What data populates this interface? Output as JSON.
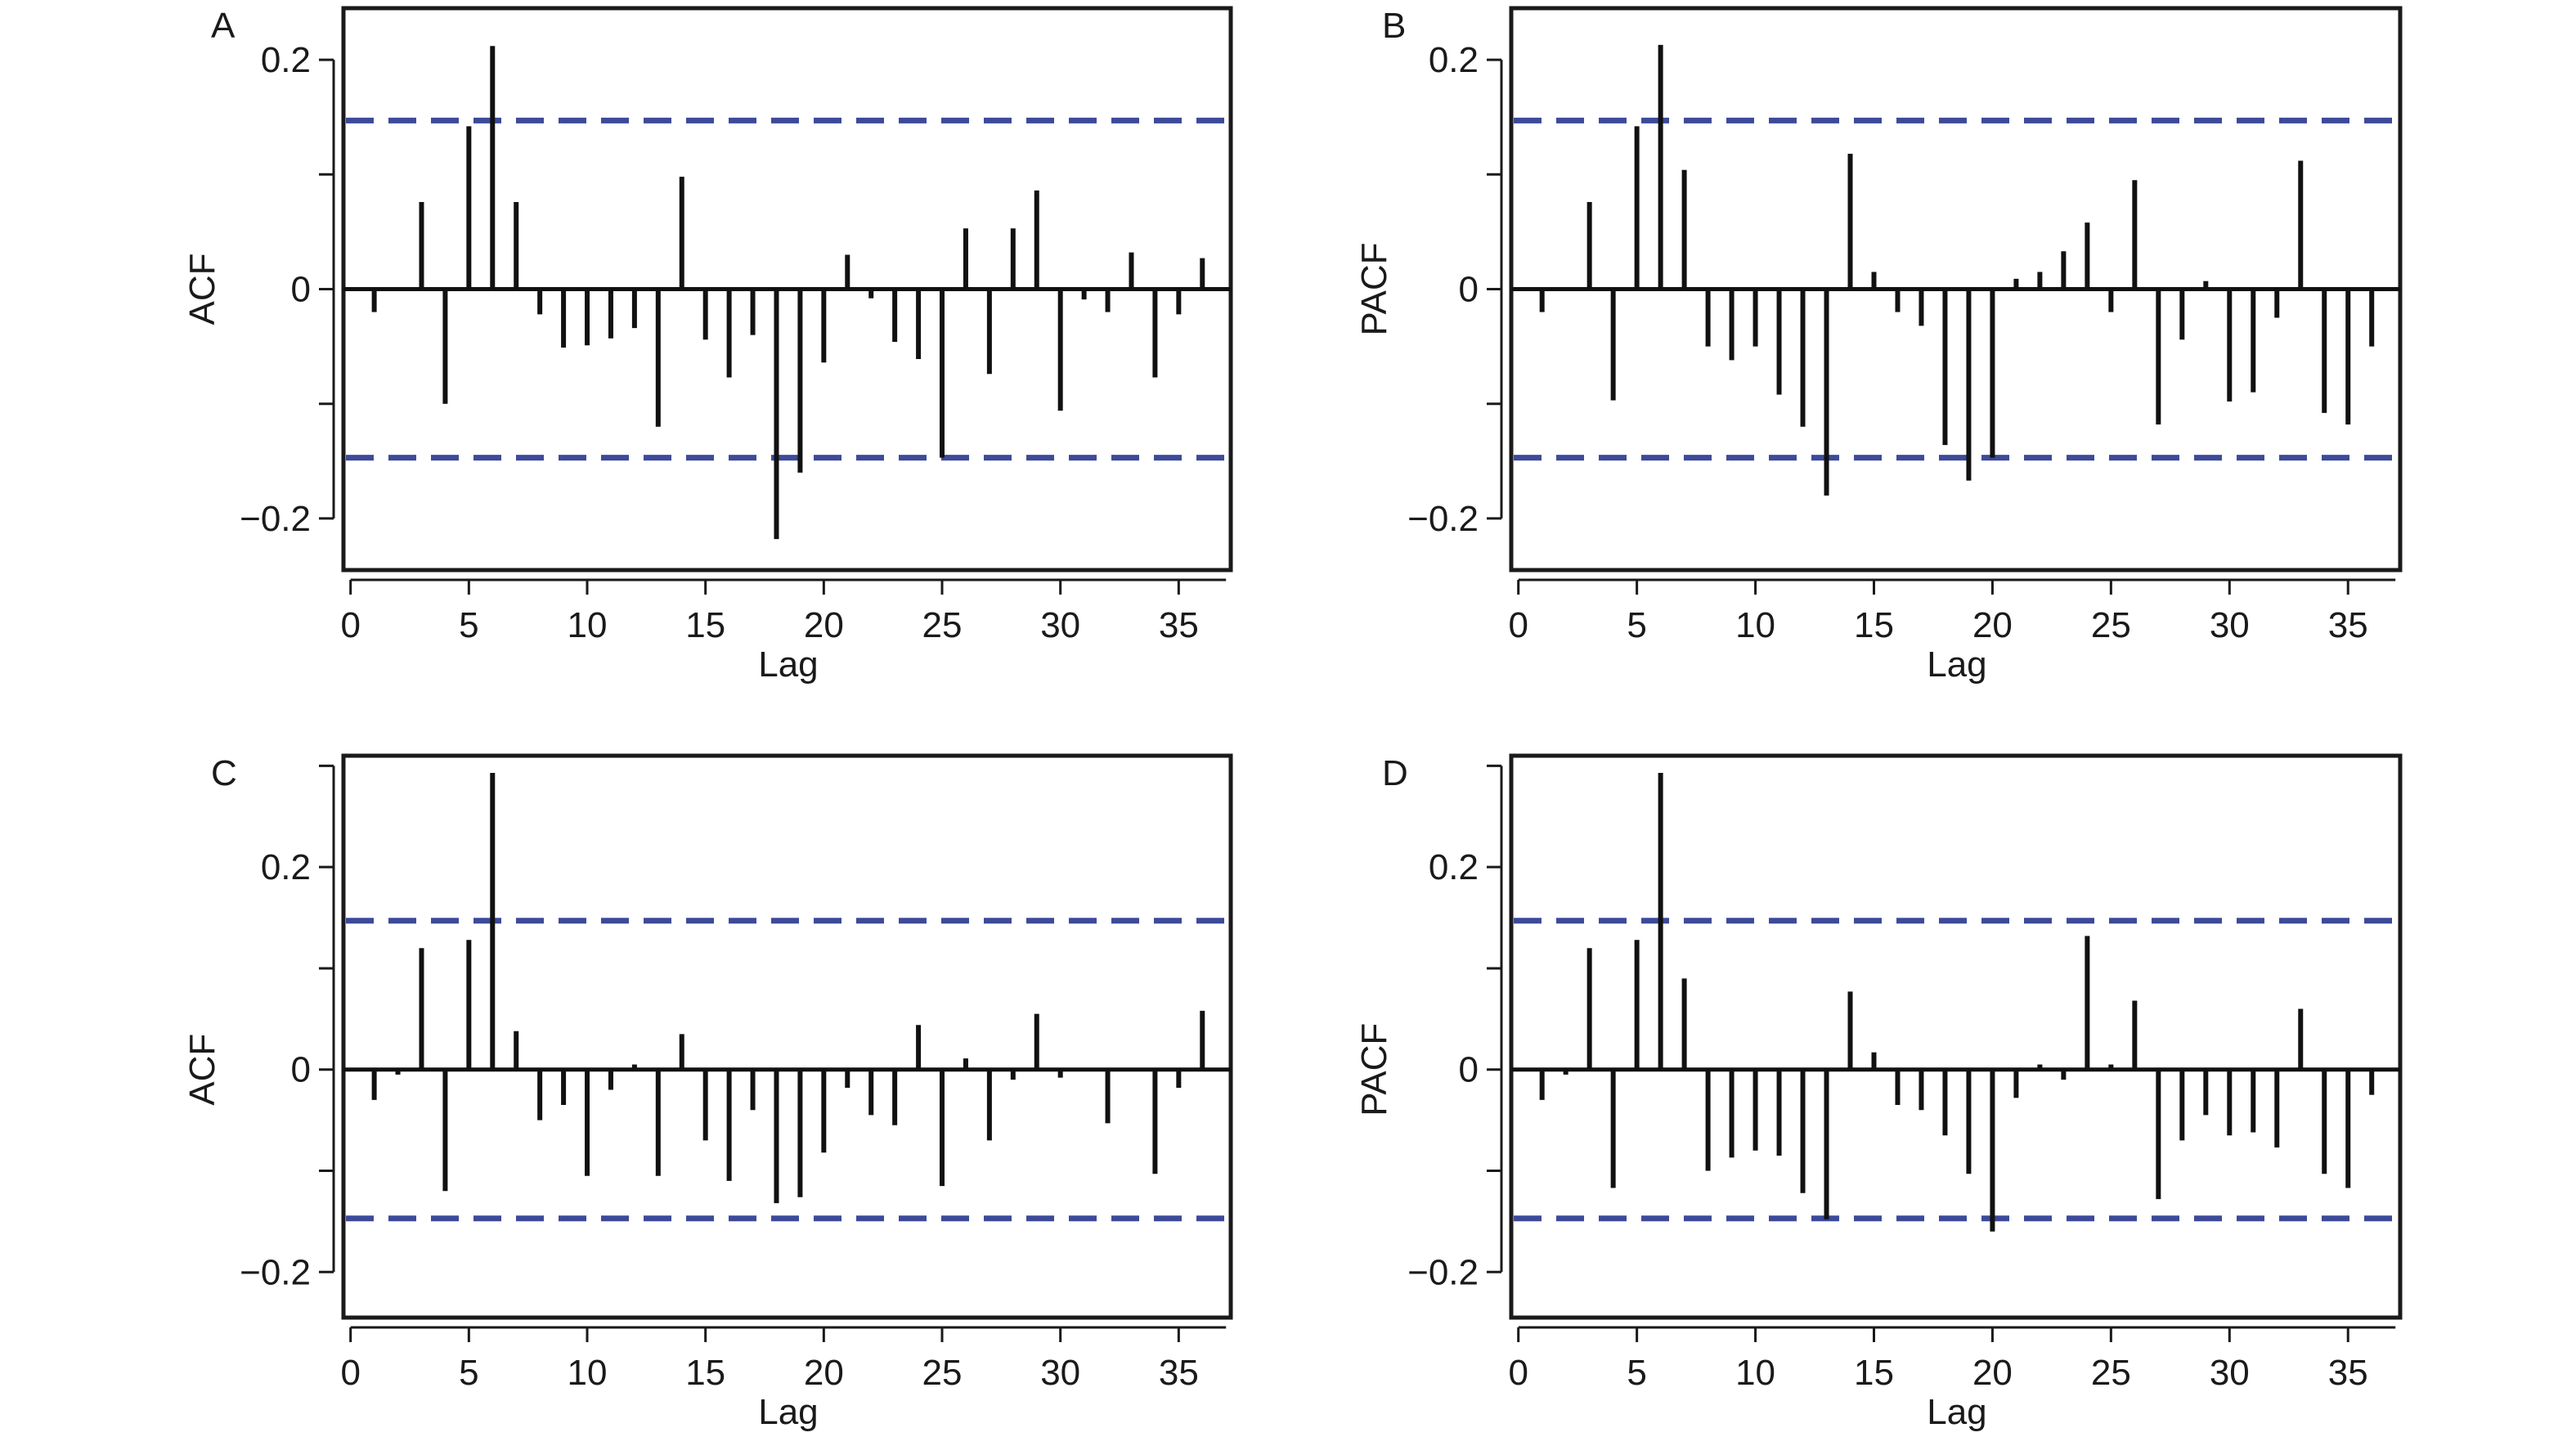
{
  "chart_data": [
    {
      "type": "bar",
      "panel_label": "A",
      "xlabel": "Lag",
      "ylabel": "ACF",
      "xlim": [
        -0.3,
        37.2
      ],
      "ylim": [
        -0.245,
        0.245
      ],
      "xticks": [
        0,
        5,
        10,
        15,
        20,
        25,
        30,
        35
      ],
      "yticks": [
        -0.2,
        -0.1,
        0,
        0.1,
        0.2
      ],
      "ytick_labels": [
        "−0.2",
        "",
        "0",
        "",
        "0.2"
      ],
      "confidence_bound": 0.147,
      "lags": [
        1,
        2,
        3,
        4,
        5,
        6,
        7,
        8,
        9,
        10,
        11,
        12,
        13,
        14,
        15,
        16,
        17,
        18,
        19,
        20,
        21,
        22,
        23,
        24,
        25,
        26,
        27,
        28,
        29,
        30,
        31,
        32,
        33,
        34,
        35,
        36
      ],
      "values": [
        -0.02,
        0,
        0.076,
        -0.1,
        0.142,
        0.212,
        0.076,
        -0.022,
        -0.051,
        -0.049,
        -0.043,
        -0.034,
        -0.12,
        0.098,
        -0.044,
        -0.077,
        -0.04,
        -0.218,
        -0.16,
        -0.064,
        0.03,
        -0.008,
        -0.046,
        -0.061,
        -0.147,
        0.053,
        -0.074,
        0.053,
        0.086,
        -0.106,
        -0.009,
        -0.02,
        0.032,
        -0.077,
        -0.022,
        0.027
      ]
    },
    {
      "type": "bar",
      "panel_label": "B",
      "xlabel": "Lag",
      "ylabel": "PACF",
      "xlim": [
        -0.3,
        37.2
      ],
      "ylim": [
        -0.245,
        0.245
      ],
      "xticks": [
        0,
        5,
        10,
        15,
        20,
        25,
        30,
        35
      ],
      "yticks": [
        -0.2,
        -0.1,
        0,
        0.1,
        0.2
      ],
      "ytick_labels": [
        "−0.2",
        "",
        "0",
        "",
        "0.2"
      ],
      "confidence_bound": 0.147,
      "lags": [
        1,
        2,
        3,
        4,
        5,
        6,
        7,
        8,
        9,
        10,
        11,
        12,
        13,
        14,
        15,
        16,
        17,
        18,
        19,
        20,
        21,
        22,
        23,
        24,
        25,
        26,
        27,
        28,
        29,
        30,
        31,
        32,
        33,
        34,
        35,
        36
      ],
      "values": [
        -0.02,
        0,
        0.076,
        -0.097,
        0.142,
        0.213,
        0.104,
        -0.05,
        -0.062,
        -0.05,
        -0.092,
        -0.12,
        -0.18,
        0.118,
        0.015,
        -0.02,
        -0.032,
        -0.136,
        -0.167,
        -0.147,
        0.009,
        0.015,
        0.033,
        0.058,
        -0.02,
        0.095,
        -0.118,
        -0.044,
        0.007,
        -0.098,
        -0.09,
        -0.025,
        0.112,
        -0.108,
        -0.118,
        -0.05
      ]
    },
    {
      "type": "bar",
      "panel_label": "C",
      "xlabel": "Lag",
      "ylabel": "ACF",
      "xlim": [
        -0.3,
        37.2
      ],
      "ylim": [
        -0.245,
        0.31
      ],
      "xticks": [
        0,
        5,
        10,
        15,
        20,
        25,
        30,
        35
      ],
      "yticks": [
        -0.2,
        -0.1,
        0,
        0.1,
        0.2,
        0.3
      ],
      "ytick_labels": [
        "−0.2",
        "",
        "0",
        "",
        "0.2",
        ""
      ],
      "confidence_bound": 0.147,
      "lags": [
        1,
        2,
        3,
        4,
        5,
        6,
        7,
        8,
        9,
        10,
        11,
        12,
        13,
        14,
        15,
        16,
        17,
        18,
        19,
        20,
        21,
        22,
        23,
        24,
        25,
        26,
        27,
        28,
        29,
        30,
        31,
        32,
        33,
        34,
        35,
        36
      ],
      "values": [
        -0.03,
        -0.005,
        0.12,
        -0.12,
        0.128,
        0.293,
        0.038,
        -0.05,
        -0.035,
        -0.105,
        -0.02,
        0.005,
        -0.105,
        0.035,
        -0.07,
        -0.11,
        -0.04,
        -0.132,
        -0.126,
        -0.082,
        -0.018,
        -0.045,
        -0.055,
        0.044,
        -0.115,
        0.011,
        -0.07,
        -0.01,
        0.055,
        -0.008,
        0,
        -0.053,
        0,
        -0.103,
        -0.018,
        0.058
      ]
    },
    {
      "type": "bar",
      "panel_label": "D",
      "xlabel": "Lag",
      "ylabel": "PACF",
      "xlim": [
        -0.3,
        37.2
      ],
      "ylim": [
        -0.245,
        0.31
      ],
      "xticks": [
        0,
        5,
        10,
        15,
        20,
        25,
        30,
        35
      ],
      "yticks": [
        -0.2,
        -0.1,
        0,
        0.1,
        0.2,
        0.3
      ],
      "ytick_labels": [
        "−0.2",
        "",
        "0",
        "",
        "0.2",
        ""
      ],
      "confidence_bound": 0.147,
      "lags": [
        1,
        2,
        3,
        4,
        5,
        6,
        7,
        8,
        9,
        10,
        11,
        12,
        13,
        14,
        15,
        16,
        17,
        18,
        19,
        20,
        21,
        22,
        23,
        24,
        25,
        26,
        27,
        28,
        29,
        30,
        31,
        32,
        33,
        34,
        35,
        36
      ],
      "values": [
        -0.03,
        -0.005,
        0.12,
        -0.117,
        0.128,
        0.293,
        0.09,
        -0.1,
        -0.087,
        -0.08,
        -0.085,
        -0.122,
        -0.148,
        0.077,
        0.017,
        -0.035,
        -0.04,
        -0.065,
        -0.103,
        -0.16,
        -0.028,
        0.005,
        -0.01,
        0.132,
        0.005,
        0.068,
        -0.128,
        -0.07,
        -0.045,
        -0.065,
        -0.062,
        -0.077,
        0.06,
        -0.103,
        -0.117,
        -0.025
      ]
    }
  ],
  "colors": {
    "bar": "#111111",
    "zero_line": "#111111",
    "confidence_line": "#3d4a9a",
    "axis": "#1a1a1a",
    "text": "#1a1a1a"
  }
}
